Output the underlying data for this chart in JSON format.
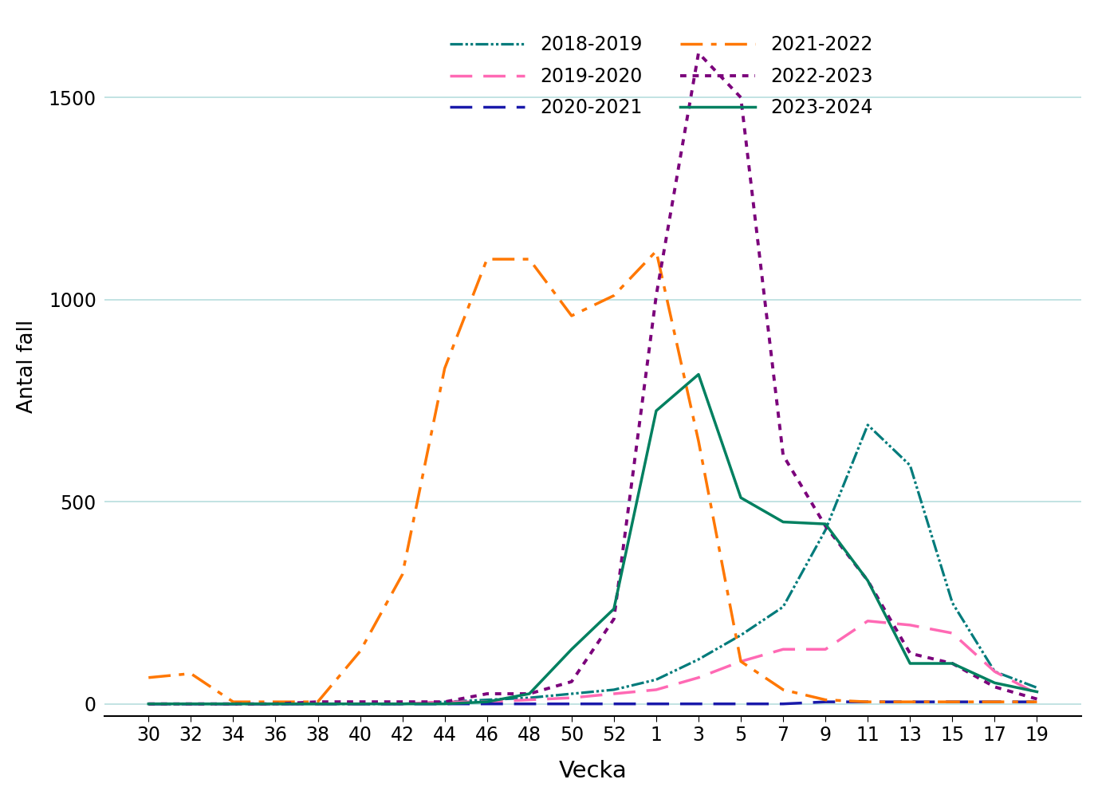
{
  "xlabel": "Vecka",
  "ylabel": "Antal fall",
  "ylim": [
    -30,
    1700
  ],
  "yticks": [
    0,
    500,
    1000,
    1500
  ],
  "x_labels": [
    "30",
    "32",
    "34",
    "36",
    "38",
    "40",
    "42",
    "44",
    "46",
    "48",
    "50",
    "52",
    "1",
    "3",
    "5",
    "7",
    "9",
    "11",
    "13",
    "15",
    "17",
    "19"
  ],
  "background_color": "#ffffff",
  "grid_color": "#b8dede",
  "series": [
    {
      "label": "2018-2019",
      "color": "#007b7b",
      "values": [
        0,
        0,
        0,
        0,
        0,
        0,
        0,
        5,
        10,
        15,
        25,
        35,
        60,
        110,
        170,
        240,
        430,
        690,
        590,
        250,
        80,
        40
      ]
    },
    {
      "label": "2019-2020",
      "color": "#ff69b4",
      "values": [
        0,
        0,
        0,
        0,
        0,
        0,
        0,
        5,
        5,
        10,
        15,
        25,
        35,
        65,
        105,
        135,
        135,
        205,
        195,
        175,
        80,
        25
      ]
    },
    {
      "label": "2020-2021",
      "color": "#1a1aaa",
      "values": [
        0,
        0,
        0,
        0,
        0,
        0,
        0,
        0,
        0,
        0,
        0,
        0,
        0,
        0,
        0,
        0,
        5,
        5,
        5,
        5,
        5,
        5
      ]
    },
    {
      "label": "2021-2022",
      "color": "#ff7700",
      "values": [
        65,
        75,
        5,
        5,
        5,
        130,
        320,
        830,
        1100,
        1100,
        960,
        1010,
        1120,
        650,
        105,
        35,
        10,
        5,
        5,
        5,
        5,
        5
      ]
    },
    {
      "label": "2022-2023",
      "color": "#7b007b",
      "values": [
        0,
        0,
        0,
        0,
        5,
        5,
        5,
        5,
        25,
        25,
        55,
        210,
        1010,
        1610,
        1500,
        615,
        440,
        305,
        125,
        100,
        42,
        12
      ]
    },
    {
      "label": "2023-2024",
      "color": "#008060",
      "values": [
        0,
        0,
        0,
        0,
        0,
        0,
        0,
        0,
        5,
        25,
        135,
        235,
        725,
        815,
        510,
        450,
        445,
        305,
        100,
        100,
        52,
        30
      ]
    }
  ],
  "legend_order": [
    0,
    1,
    2,
    3,
    4,
    5
  ],
  "legend_ncol": 2,
  "legend_rows": [
    [
      0,
      1
    ],
    [
      2,
      3
    ],
    [
      4,
      5
    ]
  ]
}
